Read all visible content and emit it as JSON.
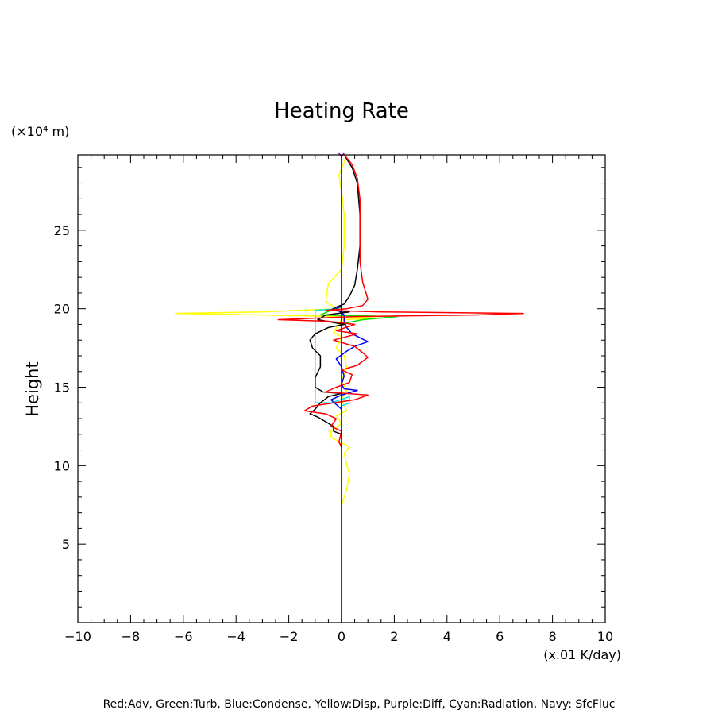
{
  "chart_data": {
    "type": "line",
    "title": "Heating Rate",
    "ylabel": "Height",
    "y_unit_label": "(×10⁴ m)",
    "x_unit_label": "(x.01 K/day)",
    "xlim": [
      -10,
      10
    ],
    "ylim": [
      0,
      29.8
    ],
    "x_ticks": [
      -10,
      -8,
      -6,
      -4,
      -2,
      0,
      2,
      4,
      6,
      8,
      10
    ],
    "x_tick_labels": [
      "−10",
      "−8",
      "−6",
      "−4",
      "−2",
      "0",
      "2",
      "4",
      "6",
      "8",
      "10"
    ],
    "y_ticks": [
      5,
      10,
      15,
      20,
      25
    ],
    "y_tick_labels": [
      "5",
      "10",
      "15",
      "20",
      "25"
    ],
    "grid": false,
    "legend_text": "Red:Adv, Green:Turb, Blue:Condense, Yellow:Disp, Purple:Diff, Cyan:Radiation, Navy: SfcFluc",
    "colors": {
      "Adv": "#ff0000",
      "Turb": "#00e000",
      "Condense": "#0000ff",
      "Disp": "#ffff00",
      "Diff": "#a000c0",
      "Radiation": "#00e5e5",
      "SfcFluc": "#000080",
      "Total": "#000000"
    },
    "series": [
      {
        "key": "Total",
        "points": [
          [
            0.1,
            29.8
          ],
          [
            0.4,
            29.0
          ],
          [
            0.6,
            28.0
          ],
          [
            0.7,
            26.0
          ],
          [
            0.7,
            24.0
          ],
          [
            0.6,
            22.5
          ],
          [
            0.5,
            21.5
          ],
          [
            0.3,
            20.8
          ],
          [
            0.1,
            20.3
          ],
          [
            -0.2,
            20.1
          ],
          [
            -0.4,
            19.9
          ],
          [
            0.3,
            19.8
          ],
          [
            -0.6,
            19.6
          ],
          [
            -0.9,
            19.3
          ],
          [
            0.1,
            19.0
          ],
          [
            -0.5,
            18.8
          ],
          [
            -1.0,
            18.4
          ],
          [
            -1.2,
            18.0
          ],
          [
            -1.1,
            17.5
          ],
          [
            -0.8,
            17.0
          ],
          [
            -0.8,
            16.3
          ],
          [
            -1.0,
            15.6
          ],
          [
            -1.0,
            15.0
          ],
          [
            -0.7,
            14.7
          ],
          [
            0.0,
            14.6
          ],
          [
            -0.5,
            14.4
          ],
          [
            -0.8,
            14.0
          ],
          [
            -1.0,
            13.6
          ],
          [
            -1.2,
            13.3
          ],
          [
            -0.9,
            13.1
          ],
          [
            -0.6,
            12.8
          ],
          [
            -0.3,
            12.5
          ],
          [
            -0.3,
            12.2
          ],
          [
            0.0,
            12.0
          ]
        ]
      },
      {
        "key": "Adv",
        "points": [
          [
            0.1,
            29.8
          ],
          [
            0.4,
            29.2
          ],
          [
            0.6,
            28.3
          ],
          [
            0.7,
            27.0
          ],
          [
            0.7,
            25.0
          ],
          [
            0.7,
            23.0
          ],
          [
            0.8,
            21.7
          ],
          [
            1.0,
            20.6
          ],
          [
            0.8,
            20.2
          ],
          [
            0.2,
            20.0
          ],
          [
            -0.6,
            19.9
          ],
          [
            1.5,
            19.8
          ],
          [
            6.9,
            19.7
          ],
          [
            5.0,
            19.6
          ],
          [
            0.5,
            19.5
          ],
          [
            -2.4,
            19.3
          ],
          [
            -0.5,
            19.2
          ],
          [
            0.5,
            19.0
          ],
          [
            -0.2,
            18.6
          ],
          [
            0.6,
            18.4
          ],
          [
            -0.3,
            18.0
          ],
          [
            0.5,
            17.6
          ],
          [
            0.8,
            17.2
          ],
          [
            1.0,
            16.9
          ],
          [
            0.6,
            16.4
          ],
          [
            0.0,
            16.1
          ],
          [
            0.4,
            15.8
          ],
          [
            0.3,
            15.3
          ],
          [
            -0.2,
            15.0
          ],
          [
            -0.6,
            14.7
          ],
          [
            0.2,
            14.6
          ],
          [
            1.0,
            14.5
          ],
          [
            0.5,
            14.2
          ],
          [
            -0.3,
            14.0
          ],
          [
            -1.1,
            13.8
          ],
          [
            -1.4,
            13.5
          ],
          [
            -0.6,
            13.3
          ],
          [
            -0.2,
            13.0
          ],
          [
            -0.4,
            12.5
          ],
          [
            0.0,
            12.2
          ],
          [
            -0.1,
            11.5
          ],
          [
            0.0,
            11.2
          ]
        ]
      },
      {
        "key": "Turb",
        "points": [
          [
            0.0,
            20.1
          ],
          [
            -0.4,
            19.9
          ],
          [
            -0.8,
            19.6
          ],
          [
            2.1,
            19.5
          ],
          [
            0.8,
            19.3
          ],
          [
            0.2,
            19.1
          ],
          [
            0.0,
            19.0
          ]
        ]
      },
      {
        "key": "Condense",
        "points": [
          [
            0.0,
            20.2
          ],
          [
            -0.2,
            20.0
          ],
          [
            0.1,
            19.6
          ],
          [
            0.1,
            19.2
          ],
          [
            0.2,
            18.8
          ],
          [
            0.4,
            18.4
          ],
          [
            1.0,
            17.9
          ],
          [
            0.5,
            17.6
          ],
          [
            0.2,
            17.3
          ],
          [
            -0.2,
            16.8
          ],
          [
            0.0,
            16.3
          ],
          [
            0.1,
            15.7
          ],
          [
            0.0,
            15.2
          ],
          [
            0.1,
            14.9
          ],
          [
            0.6,
            14.8
          ],
          [
            0.0,
            14.5
          ],
          [
            -0.4,
            14.2
          ],
          [
            -0.2,
            13.9
          ],
          [
            0.0,
            13.6
          ]
        ]
      },
      {
        "key": "Disp",
        "points": [
          [
            0.2,
            29.8
          ],
          [
            -0.1,
            28.5
          ],
          [
            0.0,
            27.5
          ],
          [
            0.1,
            26.0
          ],
          [
            0.1,
            24.0
          ],
          [
            0.0,
            22.5
          ],
          [
            -0.5,
            21.6
          ],
          [
            -0.6,
            20.5
          ],
          [
            -0.2,
            20.0
          ],
          [
            -3.0,
            19.8
          ],
          [
            -6.3,
            19.7
          ],
          [
            -3.0,
            19.6
          ],
          [
            0.0,
            19.5
          ],
          [
            1.5,
            19.4
          ],
          [
            0.0,
            19.3
          ],
          [
            -0.3,
            18.5
          ],
          [
            0.0,
            18.2
          ],
          [
            -0.2,
            17.5
          ],
          [
            0.1,
            17.0
          ],
          [
            0.2,
            16.2
          ],
          [
            0.0,
            15.4
          ],
          [
            0.2,
            14.8
          ],
          [
            0.0,
            14.2
          ],
          [
            0.2,
            13.5
          ],
          [
            -0.2,
            13.2
          ],
          [
            0.0,
            12.7
          ],
          [
            -0.4,
            12.2
          ],
          [
            -0.4,
            11.8
          ],
          [
            0.3,
            11.2
          ],
          [
            0.1,
            10.8
          ],
          [
            0.2,
            10.0
          ],
          [
            0.3,
            9.5
          ],
          [
            0.2,
            8.5
          ],
          [
            0.0,
            7.5
          ]
        ]
      },
      {
        "key": "Diff",
        "points": [
          [
            -0.1,
            29.9
          ],
          [
            0.0,
            29.7
          ],
          [
            0.1,
            29.9
          ]
        ]
      },
      {
        "key": "Radiation",
        "points": [
          [
            -0.2,
            20.0
          ],
          [
            -1.0,
            19.9
          ],
          [
            -1.0,
            18.0
          ],
          [
            -1.0,
            16.0
          ],
          [
            -1.0,
            14.0
          ],
          [
            -0.4,
            14.0
          ],
          [
            0.3,
            14.4
          ],
          [
            0.3,
            14.0
          ],
          [
            0.0,
            13.8
          ]
        ]
      },
      {
        "key": "SfcFluc",
        "points": [
          [
            0.0,
            0.0
          ],
          [
            0.0,
            29.8
          ]
        ]
      }
    ]
  }
}
